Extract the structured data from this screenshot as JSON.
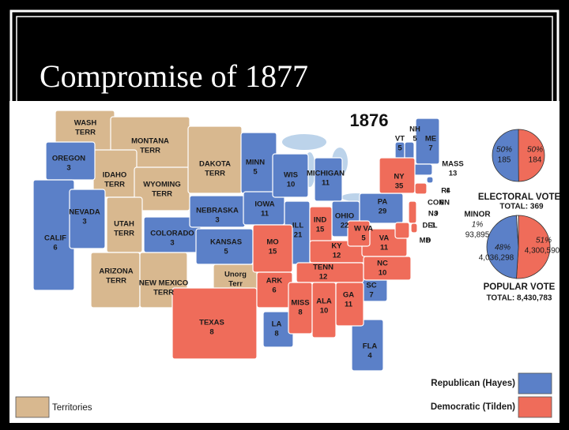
{
  "slide": {
    "title": "Compromise of 1877"
  },
  "map": {
    "year": "1876",
    "colors": {
      "republican": "#5b80c8",
      "democratic": "#ef6c5a",
      "territory": "#d8b88f",
      "minor": "#ffffff"
    },
    "states": [
      {
        "lines": [
          "WASH",
          "TERR"
        ],
        "party": "territory"
      },
      {
        "lines": [
          "MONTANA",
          "TERR"
        ],
        "party": "territory"
      },
      {
        "lines": [
          "IDAHO",
          "TERR"
        ],
        "party": "territory"
      },
      {
        "lines": [
          "WYOMING",
          "TERR"
        ],
        "party": "territory"
      },
      {
        "lines": [
          "DAKOTA",
          "TERR"
        ],
        "party": "territory"
      },
      {
        "lines": [
          "UTAH",
          "TERR"
        ],
        "party": "territory"
      },
      {
        "lines": [
          "ARIZONA",
          "TERR"
        ],
        "party": "territory"
      },
      {
        "lines": [
          "NEW MEXICO",
          "TERR"
        ],
        "party": "territory"
      },
      {
        "lines": [
          "Unorg",
          "Terr"
        ],
        "party": "territory"
      },
      {
        "name": "OREGON",
        "votes": 3,
        "party": "republican"
      },
      {
        "name": "CALIF",
        "votes": 6,
        "party": "republican"
      },
      {
        "name": "NEVADA",
        "votes": 3,
        "party": "republican"
      },
      {
        "name": "COLORADO",
        "votes": 3,
        "party": "republican"
      },
      {
        "name": "NEBRASKA",
        "votes": 3,
        "party": "republican"
      },
      {
        "name": "KANSAS",
        "votes": 5,
        "party": "republican"
      },
      {
        "name": "MINN",
        "votes": 5,
        "party": "republican"
      },
      {
        "name": "IOWA",
        "votes": 11,
        "party": "republican"
      },
      {
        "name": "WIS",
        "votes": 10,
        "party": "republican"
      },
      {
        "name": "MICHIGAN",
        "votes": 11,
        "party": "republican"
      },
      {
        "name": "ILL",
        "votes": 21,
        "party": "republican"
      },
      {
        "name": "OHIO",
        "votes": 22,
        "party": "republican"
      },
      {
        "name": "PA",
        "votes": 29,
        "party": "republican"
      },
      {
        "name": "LA",
        "votes": 8,
        "party": "republican"
      },
      {
        "name": "SC",
        "votes": 7,
        "party": "republican"
      },
      {
        "name": "FLA",
        "votes": 4,
        "party": "republican"
      },
      {
        "name": "VT",
        "votes": 5,
        "party": "republican"
      },
      {
        "name": "NH",
        "votes": 5,
        "party": "republican"
      },
      {
        "name": "ME",
        "votes": 7,
        "party": "republican"
      },
      {
        "name": "MASS",
        "votes": 13,
        "party": "republican"
      },
      {
        "name": "RI",
        "votes": 4,
        "party": "republican"
      },
      {
        "name": "TEXAS",
        "votes": 8,
        "party": "democratic"
      },
      {
        "name": "MO",
        "votes": 15,
        "party": "democratic"
      },
      {
        "name": "ARK",
        "votes": 6,
        "party": "democratic"
      },
      {
        "name": "IND",
        "votes": 15,
        "party": "democratic"
      },
      {
        "name": "KY",
        "votes": 12,
        "party": "democratic"
      },
      {
        "name": "TENN",
        "votes": 12,
        "party": "democratic"
      },
      {
        "name": "MISS",
        "votes": 8,
        "party": "democratic"
      },
      {
        "name": "ALA",
        "votes": 10,
        "party": "democratic"
      },
      {
        "name": "GA",
        "votes": 11,
        "party": "democratic"
      },
      {
        "name": "NC",
        "votes": 10,
        "party": "democratic"
      },
      {
        "name": "VA",
        "votes": 11,
        "party": "democratic"
      },
      {
        "name": "W VA",
        "votes": 5,
        "party": "democratic"
      },
      {
        "name": "NY",
        "votes": 35,
        "party": "democratic"
      },
      {
        "name": "NJ",
        "votes": 9,
        "party": "democratic"
      },
      {
        "name": "CONN",
        "votes": 6,
        "party": "democratic"
      },
      {
        "name": "DEL",
        "votes": 3,
        "party": "democratic"
      },
      {
        "name": "MD",
        "votes": 8,
        "party": "democratic"
      }
    ],
    "electoral_vote": {
      "title": "ELECTORAL VOTE",
      "total": "TOTAL: 369",
      "values": [
        185,
        184
      ],
      "percent_labels": [
        "50%",
        "50%"
      ],
      "parties": [
        "republican",
        "democratic"
      ]
    },
    "popular_vote": {
      "title": "POPULAR VOTE",
      "total": "TOTAL: 8,430,783",
      "minor_label": "MINOR",
      "percents": [
        48,
        51,
        1
      ],
      "percent_labels": [
        "48%",
        "51%",
        "1%"
      ],
      "votes": [
        4036298,
        4300590,
        93895
      ],
      "vote_labels": [
        "4,036,298",
        "4,300,590",
        "93,895"
      ],
      "parties": [
        "republican",
        "democratic",
        "minor"
      ]
    },
    "legend": [
      {
        "label": "Republican (Hayes)",
        "party": "republican"
      },
      {
        "label": "Democratic (Tilden)",
        "party": "democratic"
      },
      {
        "label": "Territories",
        "party": "territory"
      }
    ]
  }
}
